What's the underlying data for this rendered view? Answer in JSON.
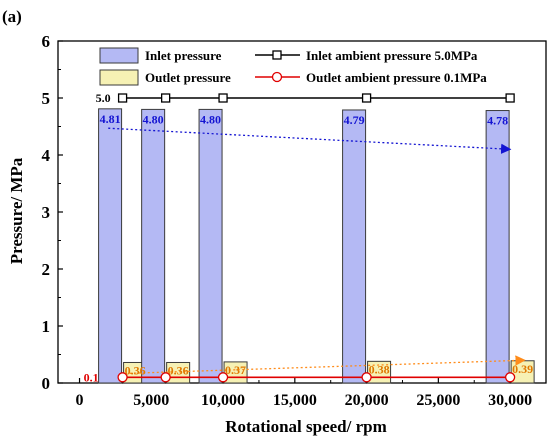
{
  "panel_label": "(a)",
  "colors": {
    "inlet_fill": "#b4b9f4",
    "inlet_edge": "#3a3a3a",
    "outlet_fill": "#f6f1b4",
    "outlet_edge": "#3a3a3a",
    "inlet_ambient_line": "#000000",
    "outlet_ambient_line": "#e00000",
    "inlet_label": "#1414d2",
    "outlet_label": "#e07800",
    "inlet_trend": "#1414d2",
    "outlet_trend": "#ff8c1a"
  },
  "chart_data": {
    "type": "bar",
    "xlabel": "Rotational speed/ rpm",
    "ylabel": "Pressure/ MPa",
    "xlim": [
      -1500,
      32500
    ],
    "ylim": [
      0,
      6
    ],
    "xticks": [
      0,
      5000,
      10000,
      15000,
      20000,
      25000,
      30000
    ],
    "xtick_labels": [
      "0",
      "5,000",
      "10,000",
      "15,000",
      "20,000",
      "25,000",
      "30,000"
    ],
    "yticks": [
      0,
      1,
      2,
      3,
      4,
      5,
      6
    ],
    "ytick_labels": [
      "0",
      "1",
      "2",
      "3",
      "4",
      "5",
      "6"
    ],
    "x": [
      3000,
      6000,
      10000,
      20000,
      30000
    ],
    "series": [
      {
        "name": "Inlet pressure",
        "kind": "bar",
        "values": [
          4.81,
          4.8,
          4.8,
          4.79,
          4.78
        ],
        "value_labels": [
          "4.81",
          "4.80",
          "4.80",
          "4.79",
          "4.78"
        ]
      },
      {
        "name": "Outlet pressure",
        "kind": "bar",
        "values": [
          0.36,
          0.36,
          0.37,
          0.38,
          0.39
        ],
        "value_labels": [
          "0.36",
          "0.36",
          "0.37",
          "0.38",
          "0.39"
        ]
      },
      {
        "name": "Inlet ambient pressure 5.0MPa",
        "kind": "line",
        "marker": "square",
        "values": [
          5.0,
          5.0,
          5.0,
          5.0,
          5.0
        ],
        "start_label": "5.0"
      },
      {
        "name": "Outlet ambient pressure 0.1MPa",
        "kind": "line",
        "marker": "circle",
        "values": [
          0.1,
          0.1,
          0.1,
          0.1,
          0.1
        ],
        "start_label": "0.1"
      }
    ],
    "trend_arrows": [
      {
        "series": "Inlet pressure",
        "from": [
          2000,
          4.47
        ],
        "to": [
          30000,
          4.1
        ]
      },
      {
        "series": "Outlet pressure",
        "from": [
          3500,
          0.17
        ],
        "to": [
          31000,
          0.4
        ]
      }
    ],
    "legend": "top"
  }
}
